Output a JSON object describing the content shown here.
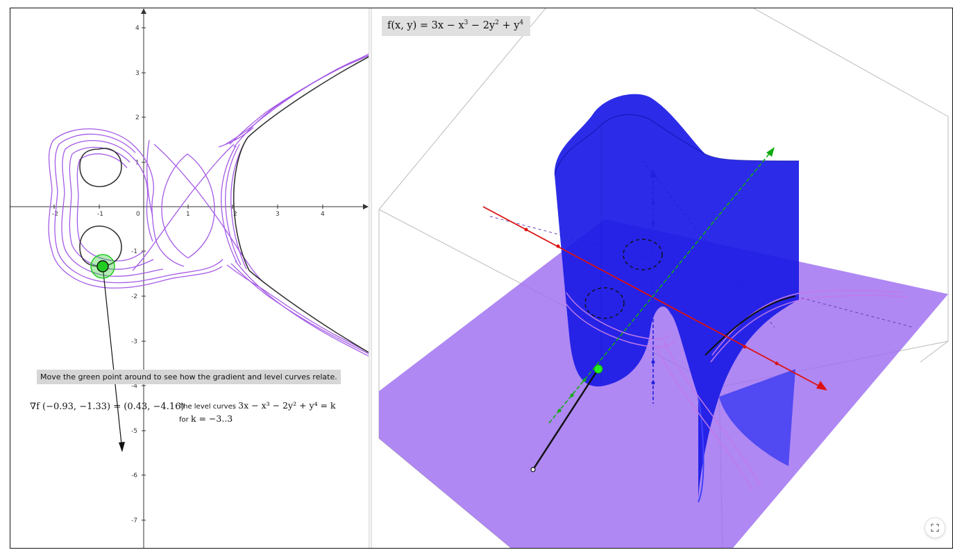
{
  "graphics2d": {
    "x_ticks": [
      "-2",
      "-1",
      "0",
      "1",
      "2",
      "3",
      "4"
    ],
    "y_ticks": [
      "4",
      "3",
      "2",
      "1",
      "-1",
      "-2",
      "-3",
      "-4",
      "-5",
      "-6",
      "-7"
    ],
    "instruction": "Move the green point around to see how the gradient and level curves relate.",
    "gradient_text": "∇f (−0.93, −1.33) =  (0.43, −4.16)",
    "level_label": "The level curves",
    "level_equation": "3x − x³ − 2y² + y⁴ = k",
    "level_for": "for",
    "level_range": "k = −3..3",
    "colors": {
      "curves": "#a45ae6",
      "point": "#22cc22",
      "highlight": "#444444"
    }
  },
  "graphics3d": {
    "function_prefix": "f(x, y) = 3x − x",
    "function_exp1": "3",
    "function_mid": " − 2y",
    "function_exp2": "2",
    "function_end": " + y",
    "function_exp3": "4",
    "fullscreen_icon": "expand-icon",
    "colors": {
      "surface": "#1414e0",
      "plane": "#9e6ef0",
      "x_axis": "#dd1111",
      "y_axis": "#11aa11",
      "z_axis": "#2222dd"
    }
  }
}
